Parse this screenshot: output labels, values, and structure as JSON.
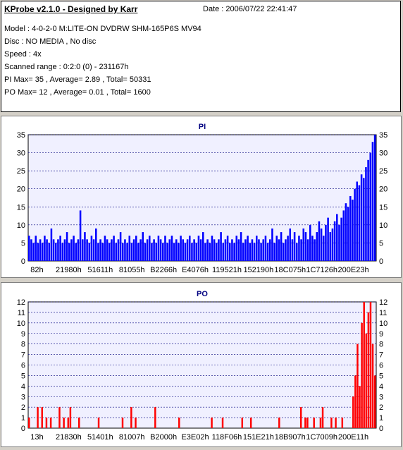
{
  "header": {
    "title": "KProbe v2.1.0 - Designed by Karr",
    "date": "Date : 2006/07/22 22:41:47",
    "lines": [
      "Model : 4-0-2-0 M:LITE-ON DVDRW SHM-165P6S MV94",
      "Disc : NO MEDIA , No disc",
      "Speed : 4x",
      "Scanned range : 0:2:0 (0) - 231167h",
      "PI Max= 35 , Average= 2.89 , Total= 50331",
      "PO Max= 12 , Average= 0.01 , Total= 1600"
    ]
  },
  "colors": {
    "pi": "#0000ff",
    "po": "#ff0000",
    "plot_bg": "#f0f0ff",
    "grid": "#000080"
  },
  "chart_data": [
    {
      "type": "bar",
      "title": "PI",
      "ylim": [
        0,
        35
      ],
      "yticks": [
        0,
        5,
        10,
        15,
        20,
        25,
        30,
        35
      ],
      "xticks": [
        "82h",
        "21980h",
        "51611h",
        "81055h",
        "B2266h",
        "E4076h",
        "119521h",
        "152190h",
        "18C075h",
        "1C7126h",
        "200E23h"
      ],
      "average": 2.89,
      "max": 35,
      "series": [
        {
          "values": [
            7,
            6,
            5,
            7,
            5,
            6,
            5,
            7,
            6,
            5,
            9,
            6,
            5,
            6,
            7,
            5,
            6,
            8,
            5,
            6,
            7,
            5,
            6,
            14,
            6,
            8,
            6,
            5,
            7,
            6,
            9,
            5,
            6,
            5,
            7,
            6,
            5,
            6,
            7,
            5,
            6,
            8,
            5,
            6,
            5,
            7,
            5,
            6,
            7,
            5,
            6,
            8,
            5,
            6,
            7,
            5,
            6,
            5,
            7,
            6,
            5,
            7,
            5,
            6,
            7,
            5,
            6,
            5,
            7,
            6,
            5,
            6,
            7,
            5,
            6,
            5,
            7,
            6,
            8,
            5,
            6,
            5,
            7,
            6,
            5,
            6,
            8,
            5,
            6,
            7,
            5,
            6,
            5,
            7,
            6,
            8,
            5,
            6,
            7,
            5,
            6,
            5,
            7,
            6,
            5,
            6,
            7,
            5,
            6,
            9,
            5,
            7,
            6,
            8,
            5,
            6,
            7,
            9,
            6,
            8,
            5,
            7,
            6,
            9,
            8,
            6,
            10,
            7,
            6,
            8,
            11,
            9,
            7,
            10,
            12,
            8,
            9,
            11,
            13,
            10,
            12,
            14,
            16,
            15,
            18,
            17,
            20,
            22,
            21,
            24,
            23,
            26,
            28,
            30,
            33,
            35
          ]
        }
      ]
    },
    {
      "type": "bar",
      "title": "PO",
      "ylim": [
        0,
        12
      ],
      "yticks": [
        0,
        1,
        2,
        3,
        4,
        5,
        6,
        7,
        8,
        9,
        10,
        11,
        12
      ],
      "xticks": [
        "13h",
        "21830h",
        "51401h",
        "81007h",
        "B2000h",
        "E3E02h",
        "118F06h",
        "151E21h",
        "18B907h",
        "1C7009h",
        "200E11h"
      ],
      "average": 0.01,
      "max": 12,
      "series": [
        {
          "values": [
            1,
            0,
            0,
            0,
            2,
            0,
            2,
            0,
            1,
            0,
            1,
            0,
            0,
            0,
            2,
            0,
            1,
            0,
            1,
            2,
            0,
            0,
            0,
            1,
            0,
            0,
            0,
            0,
            0,
            0,
            0,
            0,
            1,
            0,
            0,
            0,
            0,
            0,
            0,
            0,
            0,
            0,
            0,
            1,
            0,
            0,
            0,
            2,
            0,
            1,
            0,
            0,
            0,
            0,
            0,
            0,
            0,
            0,
            2,
            0,
            0,
            0,
            0,
            0,
            0,
            0,
            0,
            0,
            0,
            1,
            0,
            0,
            0,
            0,
            0,
            0,
            0,
            0,
            0,
            0,
            0,
            0,
            0,
            0,
            1,
            0,
            0,
            0,
            0,
            1,
            0,
            0,
            0,
            0,
            0,
            0,
            0,
            0,
            1,
            0,
            0,
            0,
            1,
            0,
            0,
            0,
            0,
            0,
            0,
            0,
            0,
            0,
            0,
            0,
            0,
            1,
            0,
            0,
            0,
            0,
            0,
            0,
            0,
            0,
            0,
            2,
            0,
            1,
            1,
            0,
            0,
            1,
            0,
            0,
            1,
            2,
            0,
            0,
            0,
            1,
            0,
            1,
            0,
            0,
            1,
            0,
            0,
            0,
            0,
            3,
            5,
            8,
            4,
            10,
            12,
            9,
            11,
            12,
            8,
            5
          ]
        }
      ]
    }
  ]
}
